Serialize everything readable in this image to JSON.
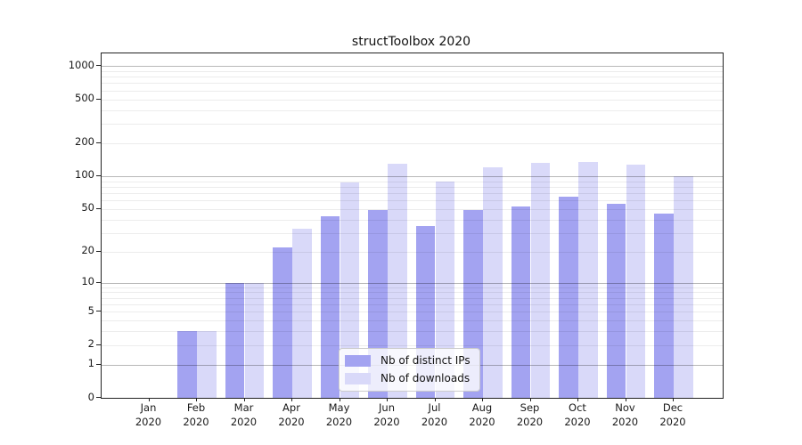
{
  "chart_data": {
    "type": "bar",
    "title": "structToolbox 2020",
    "x_months": [
      "Jan",
      "Feb",
      "Mar",
      "Apr",
      "May",
      "Jun",
      "Jul",
      "Aug",
      "Sep",
      "Oct",
      "Nov",
      "Dec"
    ],
    "x_year": "2020",
    "y_tick_labels": [
      "0",
      "1",
      "2",
      "5",
      "10",
      "20",
      "50",
      "100",
      "200",
      "500",
      "1000"
    ],
    "y_scale": "log1p",
    "ylim": [
      0,
      1300
    ],
    "grid": "major-and-minor-horizontal",
    "legend_position": "lower center",
    "series": [
      {
        "name": "Nb of distinct IPs",
        "color": "#a3a3f1",
        "values": [
          0,
          3,
          10,
          22,
          43,
          49,
          35,
          49,
          53,
          65,
          56,
          45
        ]
      },
      {
        "name": "Nb of downloads",
        "color": "#d9d9f9",
        "values": [
          0,
          3,
          10,
          33,
          87,
          130,
          90,
          120,
          133,
          136,
          127,
          100
        ]
      }
    ]
  }
}
